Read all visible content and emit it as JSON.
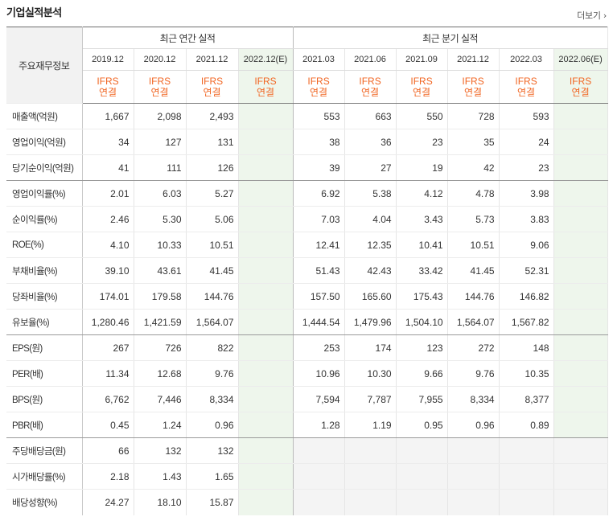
{
  "title": "기업실적분석",
  "more_label": "더보기",
  "more_icon": "chevron-right-icon",
  "header": {
    "row_header": "주요재무정보",
    "annual_group": "최근 연간 실적",
    "quarter_group": "최근 분기 실적",
    "annual_periods": [
      "2019.12",
      "2020.12",
      "2021.12",
      "2022.12(E)"
    ],
    "quarter_periods": [
      "2021.03",
      "2021.06",
      "2021.09",
      "2021.12",
      "2022.03",
      "2022.06(E)"
    ],
    "ifrs_label": "IFRS",
    "basis_label": "연결"
  },
  "colors": {
    "accent": "#f16522",
    "estimate_bg": "#eef6ec",
    "empty_bg": "#f4f4f4"
  },
  "rows": [
    {
      "label": "매출액(억원)",
      "annual": [
        "1,667",
        "2,098",
        "2,493",
        ""
      ],
      "quarter": [
        "553",
        "663",
        "550",
        "728",
        "593",
        ""
      ]
    },
    {
      "label": "영업이익(억원)",
      "annual": [
        "34",
        "127",
        "131",
        ""
      ],
      "quarter": [
        "38",
        "36",
        "23",
        "35",
        "24",
        ""
      ]
    },
    {
      "label": "당기순이익(억원)",
      "annual": [
        "41",
        "111",
        "126",
        ""
      ],
      "quarter": [
        "39",
        "27",
        "19",
        "42",
        "23",
        ""
      ]
    },
    {
      "label": "영업이익률(%)",
      "annual": [
        "2.01",
        "6.03",
        "5.27",
        ""
      ],
      "quarter": [
        "6.92",
        "5.38",
        "4.12",
        "4.78",
        "3.98",
        ""
      ]
    },
    {
      "label": "순이익률(%)",
      "annual": [
        "2.46",
        "5.30",
        "5.06",
        ""
      ],
      "quarter": [
        "7.03",
        "4.04",
        "3.43",
        "5.73",
        "3.83",
        ""
      ]
    },
    {
      "label": "ROE(%)",
      "annual": [
        "4.10",
        "10.33",
        "10.51",
        ""
      ],
      "quarter": [
        "12.41",
        "12.35",
        "10.41",
        "10.51",
        "9.06",
        ""
      ]
    },
    {
      "label": "부채비율(%)",
      "annual": [
        "39.10",
        "43.61",
        "41.45",
        ""
      ],
      "quarter": [
        "51.43",
        "42.43",
        "33.42",
        "41.45",
        "52.31",
        ""
      ]
    },
    {
      "label": "당좌비율(%)",
      "annual": [
        "174.01",
        "179.58",
        "144.76",
        ""
      ],
      "quarter": [
        "157.50",
        "165.60",
        "175.43",
        "144.76",
        "146.82",
        ""
      ]
    },
    {
      "label": "유보율(%)",
      "annual": [
        "1,280.46",
        "1,421.59",
        "1,564.07",
        ""
      ],
      "quarter": [
        "1,444.54",
        "1,479.96",
        "1,504.10",
        "1,564.07",
        "1,567.82",
        ""
      ]
    },
    {
      "label": "EPS(원)",
      "annual": [
        "267",
        "726",
        "822",
        ""
      ],
      "quarter": [
        "253",
        "174",
        "123",
        "272",
        "148",
        ""
      ]
    },
    {
      "label": "PER(배)",
      "annual": [
        "11.34",
        "12.68",
        "9.76",
        ""
      ],
      "quarter": [
        "10.96",
        "10.30",
        "9.66",
        "9.76",
        "10.35",
        ""
      ]
    },
    {
      "label": "BPS(원)",
      "annual": [
        "6,762",
        "7,446",
        "8,334",
        ""
      ],
      "quarter": [
        "7,594",
        "7,787",
        "7,955",
        "8,334",
        "8,377",
        ""
      ]
    },
    {
      "label": "PBR(배)",
      "annual": [
        "0.45",
        "1.24",
        "0.96",
        ""
      ],
      "quarter": [
        "1.28",
        "1.19",
        "0.95",
        "0.96",
        "0.89",
        ""
      ]
    },
    {
      "label": "주당배당금(원)",
      "annual": [
        "66",
        "132",
        "132",
        ""
      ],
      "quarter": null
    },
    {
      "label": "시가배당률(%)",
      "annual": [
        "2.18",
        "1.43",
        "1.65",
        ""
      ],
      "quarter": null
    },
    {
      "label": "배당성향(%)",
      "annual": [
        "24.27",
        "18.10",
        "15.87",
        ""
      ],
      "quarter": null
    }
  ]
}
